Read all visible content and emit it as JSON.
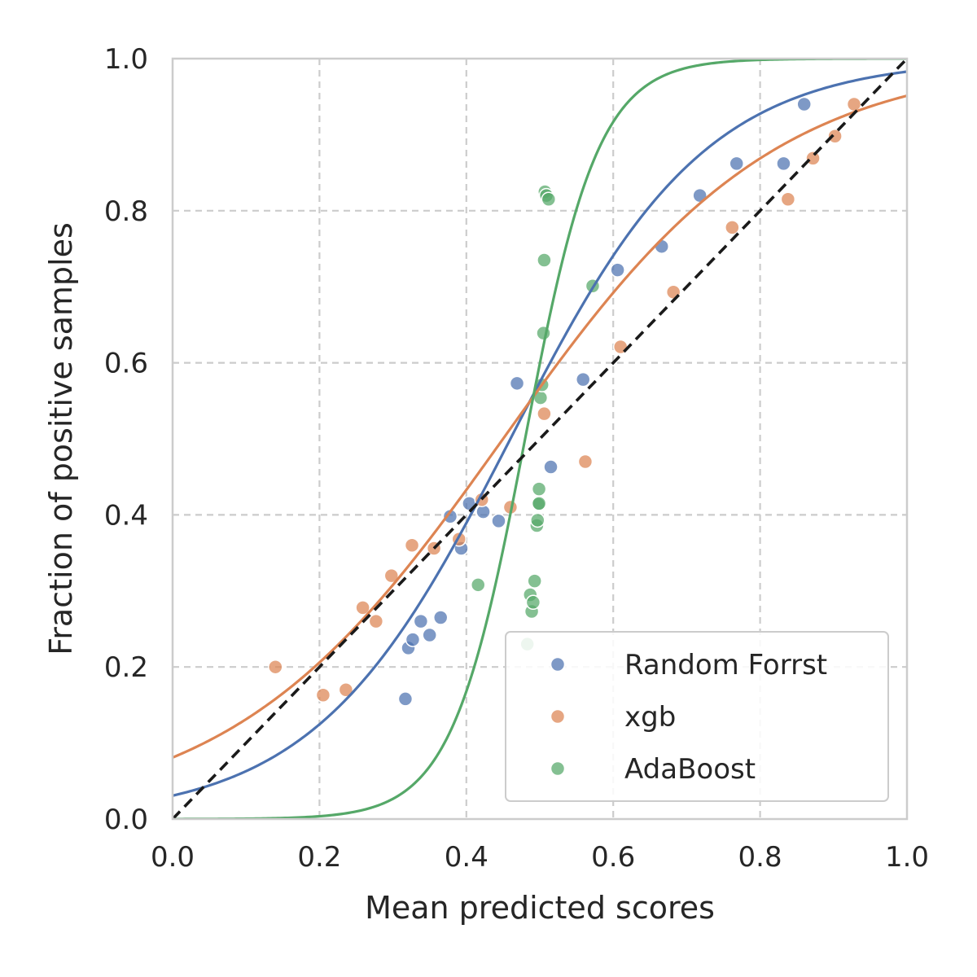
{
  "chart_data": {
    "type": "scatter",
    "title": "",
    "xlabel": "Mean predicted scores",
    "ylabel": "Fraction of positive samples",
    "xlim": [
      0,
      1
    ],
    "ylim": [
      0,
      1
    ],
    "x_ticks": [
      "0.0",
      "0.2",
      "0.4",
      "0.6",
      "0.8",
      "1.0"
    ],
    "y_ticks": [
      "0.0",
      "0.2",
      "0.4",
      "0.6",
      "0.8",
      "1.0"
    ],
    "grid": true,
    "grid_style": "dashed",
    "legend_position": "bottom-right",
    "reference_line": {
      "from": [
        0,
        0
      ],
      "to": [
        1,
        1
      ],
      "style": "dashed",
      "color": "#1a1a1a"
    },
    "series": [
      {
        "name": "Random Forrst",
        "color": "#4c72b0",
        "points": [
          [
            0.317,
            0.158
          ],
          [
            0.321,
            0.225
          ],
          [
            0.327,
            0.236
          ],
          [
            0.338,
            0.26
          ],
          [
            0.35,
            0.242
          ],
          [
            0.365,
            0.265
          ],
          [
            0.378,
            0.398
          ],
          [
            0.393,
            0.356
          ],
          [
            0.404,
            0.415
          ],
          [
            0.423,
            0.404
          ],
          [
            0.444,
            0.392
          ],
          [
            0.469,
            0.573
          ],
          [
            0.515,
            0.463
          ],
          [
            0.559,
            0.578
          ],
          [
            0.606,
            0.722
          ],
          [
            0.666,
            0.753
          ],
          [
            0.718,
            0.82
          ],
          [
            0.768,
            0.862
          ],
          [
            0.832,
            0.862
          ],
          [
            0.86,
            0.94
          ]
        ],
        "curve": {
          "type": "logistic",
          "x0": 0.46,
          "k": 7.5
        }
      },
      {
        "name": "xgb",
        "color": "#dd8452",
        "points": [
          [
            0.14,
            0.2
          ],
          [
            0.205,
            0.163
          ],
          [
            0.236,
            0.17
          ],
          [
            0.259,
            0.278
          ],
          [
            0.277,
            0.26
          ],
          [
            0.298,
            0.32
          ],
          [
            0.326,
            0.36
          ],
          [
            0.356,
            0.356
          ],
          [
            0.39,
            0.368
          ],
          [
            0.421,
            0.42
          ],
          [
            0.46,
            0.41
          ],
          [
            0.506,
            0.533
          ],
          [
            0.562,
            0.47
          ],
          [
            0.61,
            0.621
          ],
          [
            0.682,
            0.693
          ],
          [
            0.762,
            0.778
          ],
          [
            0.838,
            0.815
          ],
          [
            0.872,
            0.869
          ],
          [
            0.902,
            0.898
          ],
          [
            0.928,
            0.94
          ]
        ],
        "curve": {
          "type": "logistic",
          "x0": 0.45,
          "k": 5.4
        }
      },
      {
        "name": "AdaBoost",
        "color": "#55a868",
        "points": [
          [
            0.416,
            0.308
          ],
          [
            0.483,
            0.23
          ],
          [
            0.487,
            0.295
          ],
          [
            0.489,
            0.273
          ],
          [
            0.491,
            0.285
          ],
          [
            0.493,
            0.313
          ],
          [
            0.496,
            0.386
          ],
          [
            0.497,
            0.393
          ],
          [
            0.498,
            0.414
          ],
          [
            0.499,
            0.434
          ],
          [
            0.499,
            0.415
          ],
          [
            0.501,
            0.554
          ],
          [
            0.503,
            0.571
          ],
          [
            0.505,
            0.639
          ],
          [
            0.506,
            0.735
          ],
          [
            0.507,
            0.825
          ],
          [
            0.509,
            0.82
          ],
          [
            0.512,
            0.815
          ],
          [
            0.572,
            0.701
          ]
        ],
        "curve": {
          "type": "logistic",
          "x0": 0.48,
          "k": 20
        }
      }
    ]
  }
}
